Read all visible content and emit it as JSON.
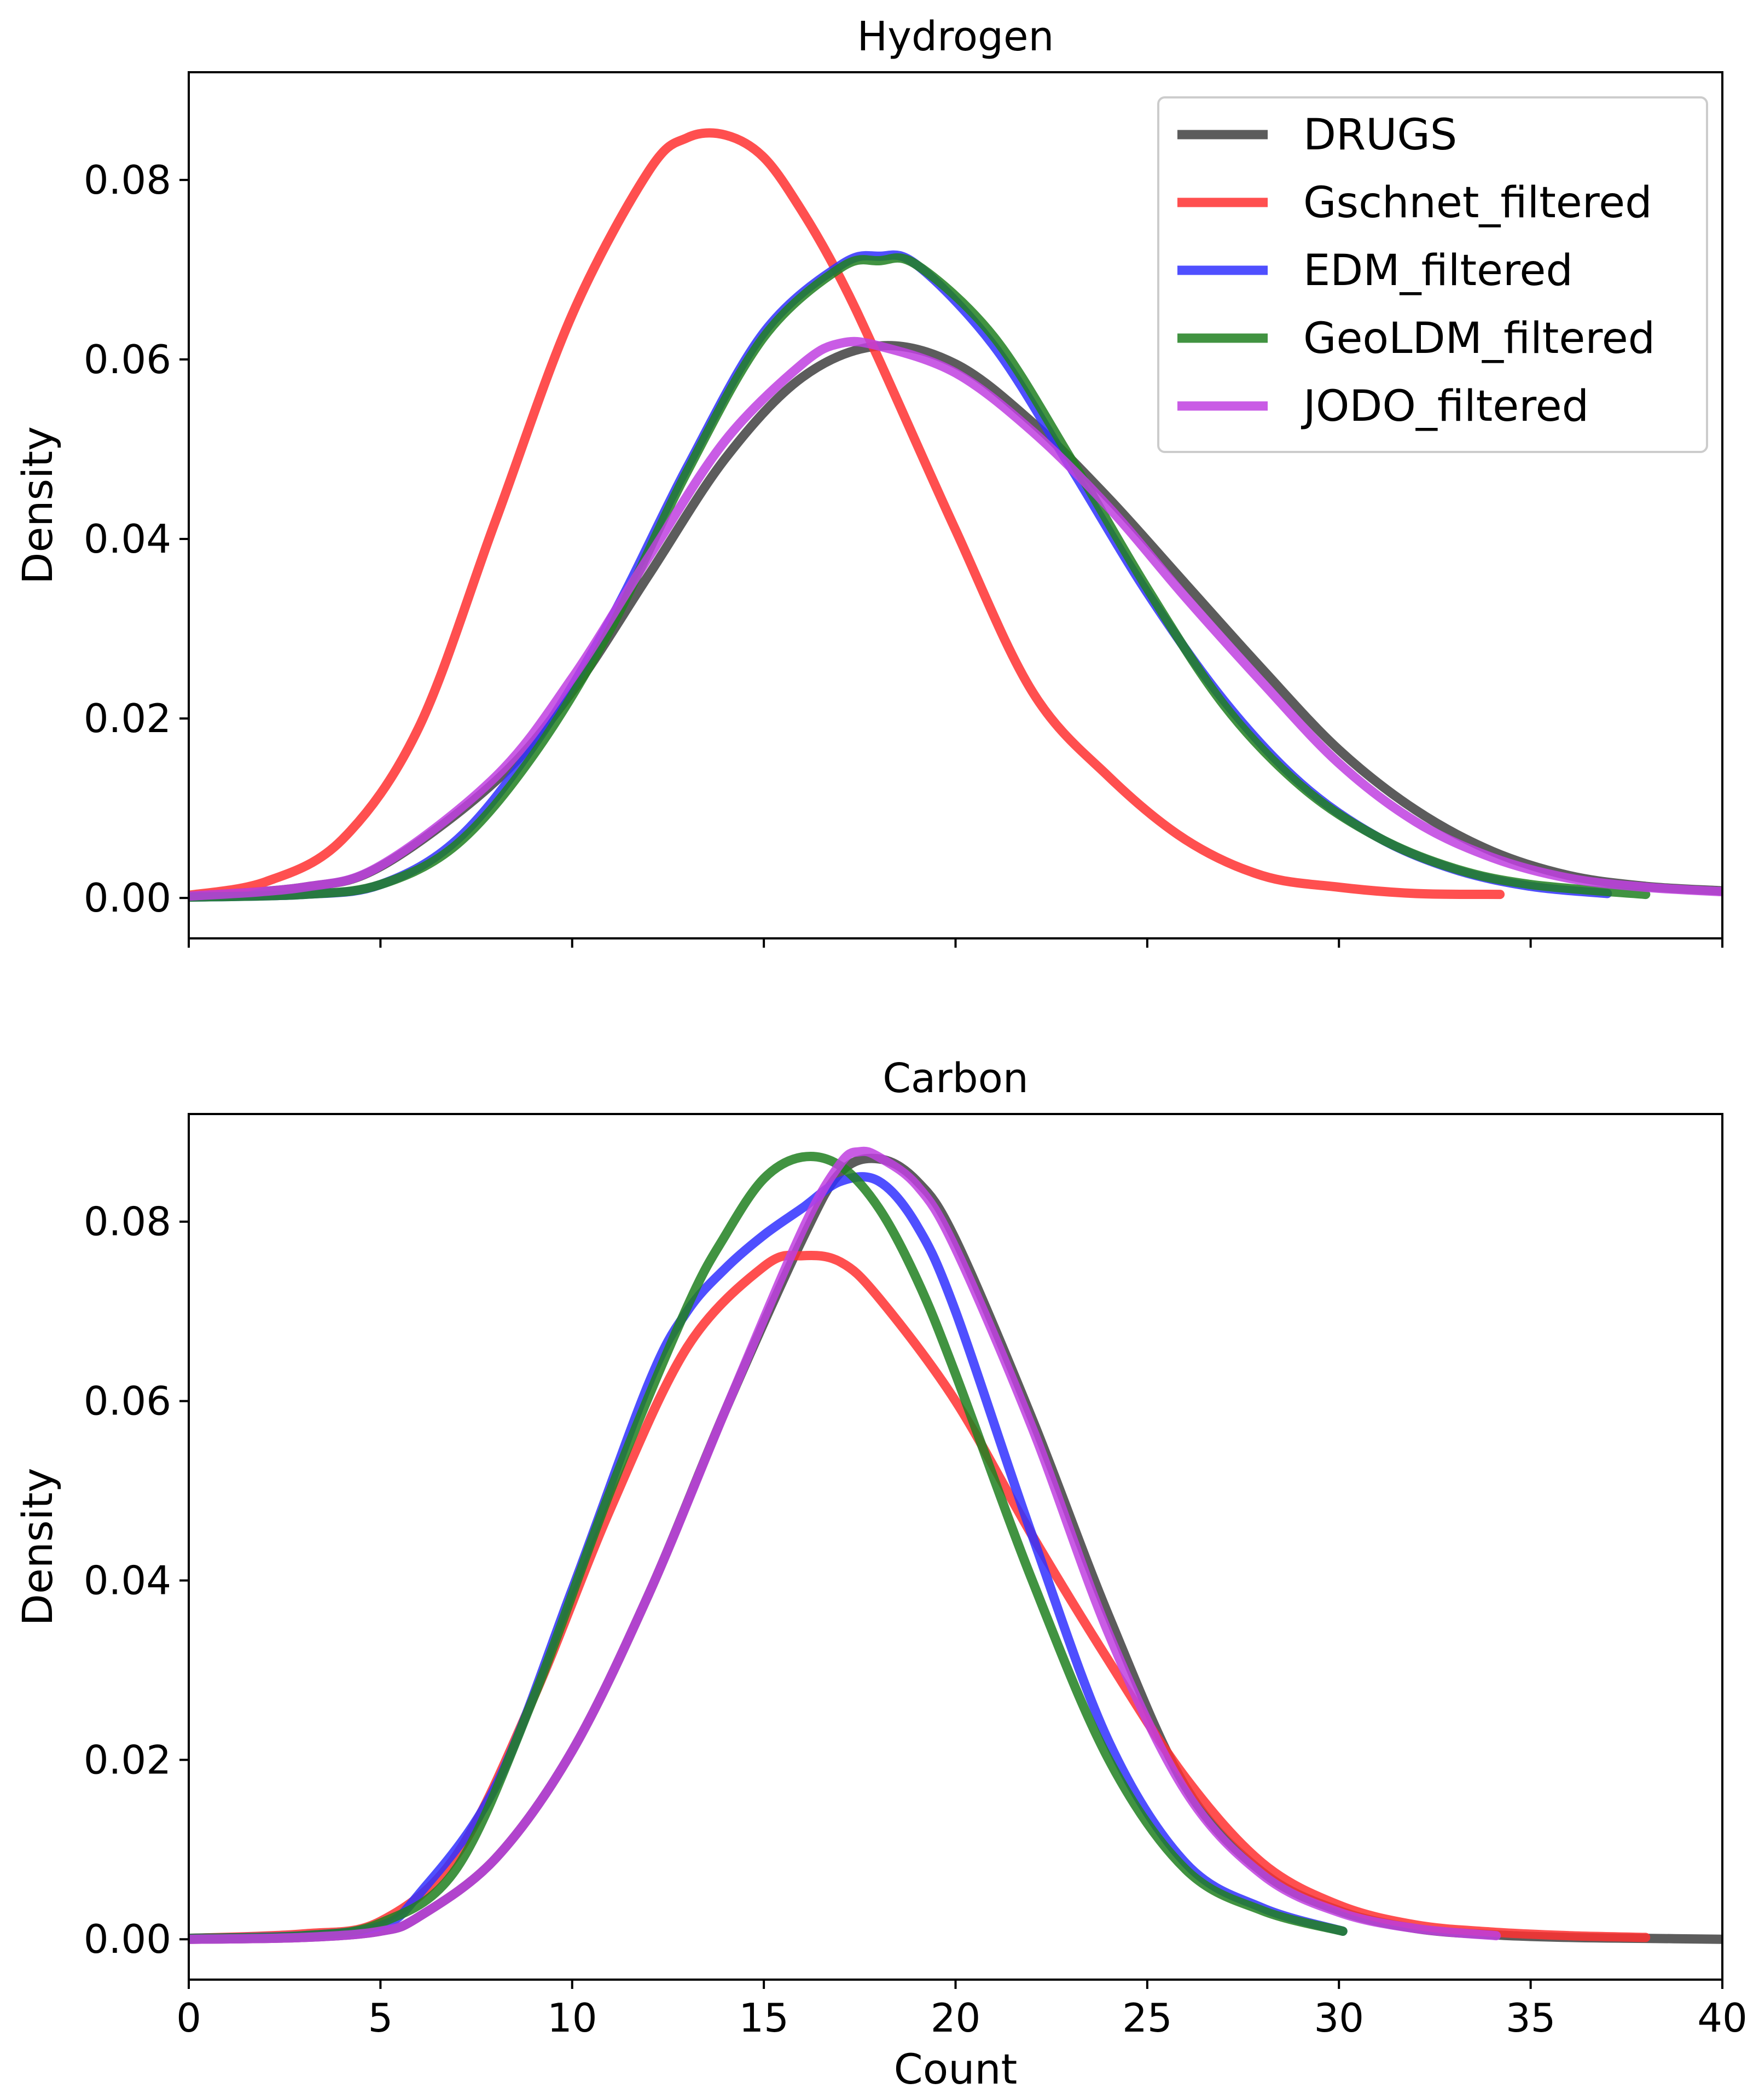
{
  "chart_data": [
    {
      "type": "line",
      "title": "Hydrogen",
      "xlabel": "",
      "ylabel": "Density",
      "xlim": [
        0,
        40
      ],
      "ylim": [
        -0.0045,
        0.092
      ],
      "x_ticks": [
        0,
        5,
        10,
        15,
        20,
        25,
        30,
        35,
        40
      ],
      "x_tick_labels_visible": false,
      "y_ticks": [
        0.0,
        0.02,
        0.04,
        0.06,
        0.08
      ],
      "y_tick_labels": [
        "0.00",
        "0.02",
        "0.04",
        "0.06",
        "0.08"
      ],
      "grid": false,
      "legend": "top-right",
      "series": [
        {
          "name": "DRUGS",
          "color": "#404040",
          "x": [
            0,
            3,
            5,
            8,
            10,
            12,
            14,
            16,
            18,
            20,
            22,
            24,
            26,
            28,
            30,
            32,
            34,
            36,
            38,
            40
          ],
          "y": [
            0.0002,
            0.0012,
            0.0035,
            0.013,
            0.023,
            0.036,
            0.049,
            0.058,
            0.0615,
            0.0595,
            0.053,
            0.0445,
            0.035,
            0.0255,
            0.0165,
            0.0098,
            0.0052,
            0.0025,
            0.0013,
            0.0008
          ]
        },
        {
          "name": "Gschnet_filtered",
          "color": "#ff3030",
          "x": [
            0,
            2,
            4,
            6,
            8,
            10,
            12,
            13,
            14,
            15,
            16,
            17,
            18,
            20,
            22,
            24,
            26,
            28,
            30,
            32,
            34.2
          ],
          "y": [
            0.0003,
            0.0018,
            0.0065,
            0.019,
            0.042,
            0.065,
            0.081,
            0.0847,
            0.085,
            0.0825,
            0.0765,
            0.069,
            0.06,
            0.041,
            0.023,
            0.0135,
            0.0065,
            0.0025,
            0.0012,
            0.0005,
            0.0004
          ]
        },
        {
          "name": "EDM_filtered",
          "color": "#3030ff",
          "x": [
            0,
            3,
            5,
            7,
            9,
            11,
            13,
            15,
            17,
            18,
            19,
            21,
            23,
            25,
            27,
            29,
            31,
            33,
            35,
            37
          ],
          "y": [
            0.0001,
            0.0004,
            0.0015,
            0.0065,
            0.017,
            0.031,
            0.048,
            0.063,
            0.0705,
            0.0715,
            0.0705,
            0.0615,
            0.048,
            0.034,
            0.022,
            0.0128,
            0.0068,
            0.0032,
            0.0013,
            0.0005
          ]
        },
        {
          "name": "GeoLDM_filtered",
          "color": "#208020",
          "x": [
            0,
            3,
            5,
            7,
            9,
            11,
            13,
            15,
            17,
            18,
            19,
            21,
            23,
            25,
            27,
            29,
            31,
            33,
            35,
            38
          ],
          "y": [
            0.0001,
            0.0004,
            0.0015,
            0.006,
            0.016,
            0.03,
            0.0475,
            0.0625,
            0.0702,
            0.071,
            0.0705,
            0.0625,
            0.049,
            0.0345,
            0.0215,
            0.0125,
            0.0068,
            0.0033,
            0.0015,
            0.0004
          ]
        },
        {
          "name": "JODO_filtered",
          "color": "#c040e0",
          "x": [
            0,
            3,
            5,
            8,
            10,
            12,
            14,
            16,
            17,
            18,
            20,
            22,
            24,
            26,
            28,
            30,
            32,
            34,
            36,
            38,
            40
          ],
          "y": [
            0.0002,
            0.0012,
            0.0036,
            0.0135,
            0.0245,
            0.038,
            0.051,
            0.0595,
            0.0618,
            0.0615,
            0.0585,
            0.052,
            0.0435,
            0.0335,
            0.024,
            0.015,
            0.0085,
            0.0045,
            0.0022,
            0.0012,
            0.0007
          ]
        }
      ]
    },
    {
      "type": "line",
      "title": "Carbon",
      "xlabel": "Count",
      "ylabel": "Density",
      "xlim": [
        0,
        40
      ],
      "ylim": [
        -0.0045,
        0.092
      ],
      "x_ticks": [
        0,
        5,
        10,
        15,
        20,
        25,
        30,
        35,
        40
      ],
      "x_tick_labels": [
        "0",
        "5",
        "10",
        "15",
        "20",
        "25",
        "30",
        "35",
        "40"
      ],
      "y_ticks": [
        0.0,
        0.02,
        0.04,
        0.06,
        0.08
      ],
      "y_tick_labels": [
        "0.00",
        "0.02",
        "0.04",
        "0.06",
        "0.08"
      ],
      "grid": false,
      "legend": "none",
      "series": [
        {
          "name": "DRUGS",
          "color": "#404040",
          "x": [
            0,
            3,
            5,
            6,
            8,
            10,
            12,
            14,
            16,
            17,
            18,
            19,
            20,
            22,
            24,
            26,
            28,
            30,
            32,
            34,
            36,
            38,
            40
          ],
          "y": [
            0.0,
            0.0002,
            0.0009,
            0.0025,
            0.009,
            0.021,
            0.0385,
            0.059,
            0.078,
            0.0855,
            0.087,
            0.0845,
            0.078,
            0.058,
            0.036,
            0.017,
            0.0075,
            0.0032,
            0.0012,
            0.0005,
            0.0002,
            0.0001,
            0.0
          ]
        },
        {
          "name": "Gschnet_filtered",
          "color": "#ff3030",
          "x": [
            0,
            3,
            5,
            7,
            9,
            11,
            13,
            15,
            16,
            17,
            18,
            20,
            22,
            24,
            26,
            28,
            30,
            32,
            34,
            36,
            38
          ],
          "y": [
            0.0001,
            0.0006,
            0.002,
            0.0095,
            0.027,
            0.048,
            0.066,
            0.075,
            0.0762,
            0.0755,
            0.0715,
            0.06,
            0.045,
            0.031,
            0.018,
            0.0085,
            0.0038,
            0.0016,
            0.0008,
            0.0004,
            0.0002
          ]
        },
        {
          "name": "EDM_filtered",
          "color": "#3030ff",
          "x": [
            0,
            3,
            5,
            6,
            8,
            10,
            12,
            13,
            14,
            15,
            16,
            17,
            18,
            19,
            20,
            22,
            24,
            26,
            28,
            30.1
          ],
          "y": [
            0.0001,
            0.0004,
            0.0015,
            0.005,
            0.017,
            0.039,
            0.062,
            0.07,
            0.0748,
            0.0785,
            0.0815,
            0.0845,
            0.0845,
            0.0795,
            0.07,
            0.045,
            0.022,
            0.0085,
            0.0035,
            0.0009
          ]
        },
        {
          "name": "GeoLDM_filtered",
          "color": "#208020",
          "x": [
            0,
            3,
            5,
            7,
            9,
            11,
            13,
            14,
            15,
            16,
            17,
            18,
            19,
            20,
            22,
            24,
            26,
            28,
            30.1
          ],
          "y": [
            0.0001,
            0.0004,
            0.0018,
            0.008,
            0.027,
            0.05,
            0.0705,
            0.0785,
            0.0848,
            0.0872,
            0.0862,
            0.0815,
            0.0735,
            0.063,
            0.04,
            0.02,
            0.0078,
            0.0032,
            0.0009
          ]
        },
        {
          "name": "JODO_filtered",
          "color": "#c040e0",
          "x": [
            0,
            3,
            5,
            6,
            8,
            10,
            12,
            14,
            16,
            17,
            17.5,
            18,
            19,
            20,
            22,
            24,
            26,
            28,
            30,
            32,
            34.1
          ],
          "y": [
            0.0,
            0.0002,
            0.0009,
            0.0025,
            0.009,
            0.021,
            0.0385,
            0.059,
            0.079,
            0.0865,
            0.0878,
            0.0872,
            0.084,
            0.077,
            0.057,
            0.034,
            0.0165,
            0.0072,
            0.003,
            0.0012,
            0.0004
          ]
        }
      ]
    }
  ]
}
